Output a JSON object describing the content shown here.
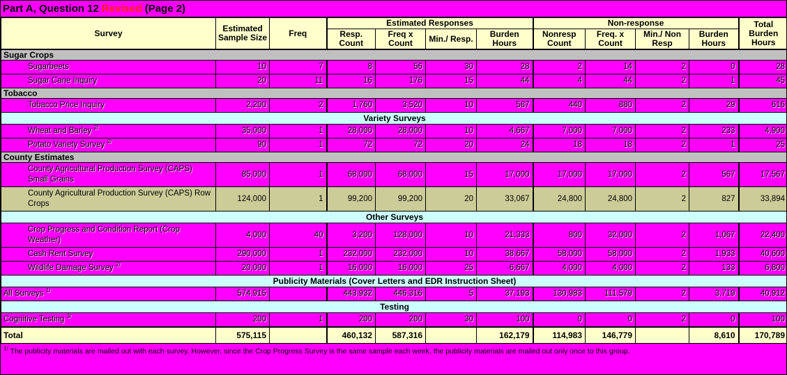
{
  "title": {
    "prefix": "Part A, Question 12 ",
    "revised": "Revised",
    "suffix": " (Page 2)"
  },
  "colors": {
    "row_magenta": "#FF00FF",
    "section_gray": "#C0C0C0",
    "banner_cyan": "#CCFFFF",
    "row_olive": "#CCCC99",
    "header_yellow": "#FFFFCC",
    "revised_red": "#FF2200"
  },
  "header": {
    "survey": "Survey",
    "sample": "Estimated Sample Size",
    "freq": "Freq",
    "est_group": "Estimated Responses",
    "non_group": "Non-response",
    "total": "Total Burden Hours",
    "est_cols": [
      "Resp. Count",
      "Freq x Count",
      "Min./ Resp.",
      "Burden Hours"
    ],
    "non_cols": [
      "Nonresp Count",
      "Freq. x Count",
      "Min./ Non Resp",
      "Burden Hours"
    ]
  },
  "table": {
    "rows": [
      {
        "type": "group",
        "label": "Sugar Crops"
      },
      {
        "type": "data",
        "label": "Sugarbeets",
        "values": [
          "10",
          "7",
          "8",
          "56",
          "30",
          "28",
          "2",
          "14",
          "2",
          "0",
          "28"
        ]
      },
      {
        "type": "data",
        "label": "Sugar Cane Inquiry",
        "values": [
          "20",
          "11",
          "16",
          "176",
          "15",
          "44",
          "4",
          "44",
          "2",
          "1",
          "45"
        ]
      },
      {
        "type": "group",
        "label": "Tobacco"
      },
      {
        "type": "data",
        "label": "Tobacco Price Inquiry",
        "values": [
          "2,200",
          "2",
          "1,760",
          "3,520",
          "10",
          "587",
          "440",
          "880",
          "2",
          "29",
          "616"
        ]
      },
      {
        "type": "banner",
        "label": "Variety Surveys"
      },
      {
        "type": "data",
        "label": "Wheat and Barley ",
        "sup": "2/",
        "values": [
          "35,000",
          "1",
          "28,000",
          "28,000",
          "10",
          "4,667",
          "7,000",
          "7,000",
          "2",
          "233",
          "4,900"
        ]
      },
      {
        "type": "data",
        "label": "Potato Variety Survey ",
        "sup": "2/",
        "values": [
          "90",
          "1",
          "72",
          "72",
          "20",
          "24",
          "18",
          "18",
          "2",
          "1",
          "25"
        ]
      },
      {
        "type": "group",
        "label": "County Estimates"
      },
      {
        "type": "data",
        "label": "County Agricultural Production Survey (CAPS) Small Grains",
        "values": [
          "85,000",
          "1",
          "68,000",
          "68,000",
          "15",
          "17,000",
          "17,000",
          "17,000",
          "2",
          "567",
          "17,567"
        ]
      },
      {
        "type": "data",
        "variant": "olive",
        "label": "County Agricultural Production Survey (CAPS) Row Crops",
        "values": [
          "124,000",
          "1",
          "99,200",
          "99,200",
          "20",
          "33,067",
          "24,800",
          "24,800",
          "2",
          "827",
          "33,894"
        ]
      },
      {
        "type": "banner",
        "label": "Other Surveys"
      },
      {
        "type": "data",
        "label": "Crop Progress and Condition Report (Crop Weather)",
        "values": [
          "4,000",
          "40",
          "3,200",
          "128,000",
          "10",
          "21,333",
          "800",
          "32,000",
          "2",
          "1,067",
          "22,400"
        ]
      },
      {
        "type": "data",
        "label": "Cash Rent Survey",
        "values": [
          "290,000",
          "1",
          "232,000",
          "232,000",
          "10",
          "38,667",
          "58,000",
          "58,000",
          "2",
          "1,933",
          "40,600"
        ]
      },
      {
        "type": "data",
        "label": "Wildlife Damage Survey ",
        "sup": "2/",
        "values": [
          "20,000",
          "1",
          "16,000",
          "16,000",
          "25",
          "6,667",
          "4,000",
          "4,000",
          "2",
          "133",
          "6,800"
        ]
      },
      {
        "type": "banner",
        "label": "Publicity Materials (Cover Letters and EDR Instruction Sheet)"
      },
      {
        "type": "data",
        "flush": true,
        "label": "All Surveys ",
        "sup": "1/",
        "values": [
          "574,915",
          "",
          "443,932",
          "446,316",
          "5",
          "37,193",
          "130,983",
          "111,579",
          "2",
          "3,719",
          "40,912"
        ]
      },
      {
        "type": "banner",
        "label": "Testing"
      },
      {
        "type": "data",
        "flush": true,
        "label": "Cognitive Testing ",
        "sup": "3/",
        "values": [
          "200",
          "1",
          "200",
          "200",
          "30",
          "100",
          "0",
          "0",
          "2",
          "0",
          "100"
        ]
      },
      {
        "type": "total",
        "label": "Total",
        "values": [
          "575,115",
          "",
          "460,132",
          "587,316",
          "",
          "162,179",
          "114,983",
          "146,779",
          "",
          "8,610",
          "170,789"
        ]
      }
    ]
  },
  "footnote": {
    "marker": "1/",
    "text": " The publicity materials are mailed out with each survey.  However, since the Crop Progress Survey is the same sample each week, the publicity materials are mailed out only once to this group."
  }
}
